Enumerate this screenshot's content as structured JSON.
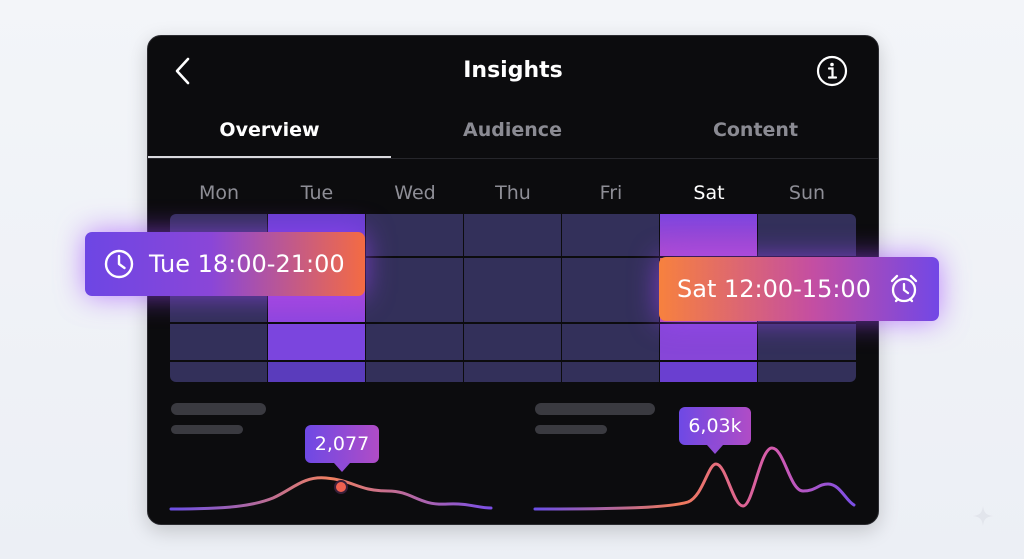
{
  "header": {
    "title": "Insights",
    "back_icon": "chevron-left-icon",
    "info_icon": "info-circle-icon"
  },
  "tabs": [
    {
      "label": "Overview",
      "active": true
    },
    {
      "label": "Audience",
      "active": false
    },
    {
      "label": "Content",
      "active": false
    }
  ],
  "heatmap": {
    "days": [
      "Mon",
      "Tue",
      "Wed",
      "Thu",
      "Fri",
      "Sat",
      "Sun"
    ],
    "active_day": "Sat",
    "highlights": [
      {
        "day": "Tue",
        "label": "Tue 18:00-21:00",
        "icon": "clock-icon"
      },
      {
        "day": "Sat",
        "label": "Sat 12:00-15:00",
        "icon": "alarm-clock-icon"
      }
    ]
  },
  "charts": {
    "left": {
      "tooltip": "2,077"
    },
    "right": {
      "tooltip": "6,03k"
    }
  },
  "colors": {
    "background": "#eef1f6",
    "panel": "#0c0c0e",
    "cell": "#33305a",
    "accent_purple": "#6d46e4",
    "accent_orange": "#f46b43"
  }
}
